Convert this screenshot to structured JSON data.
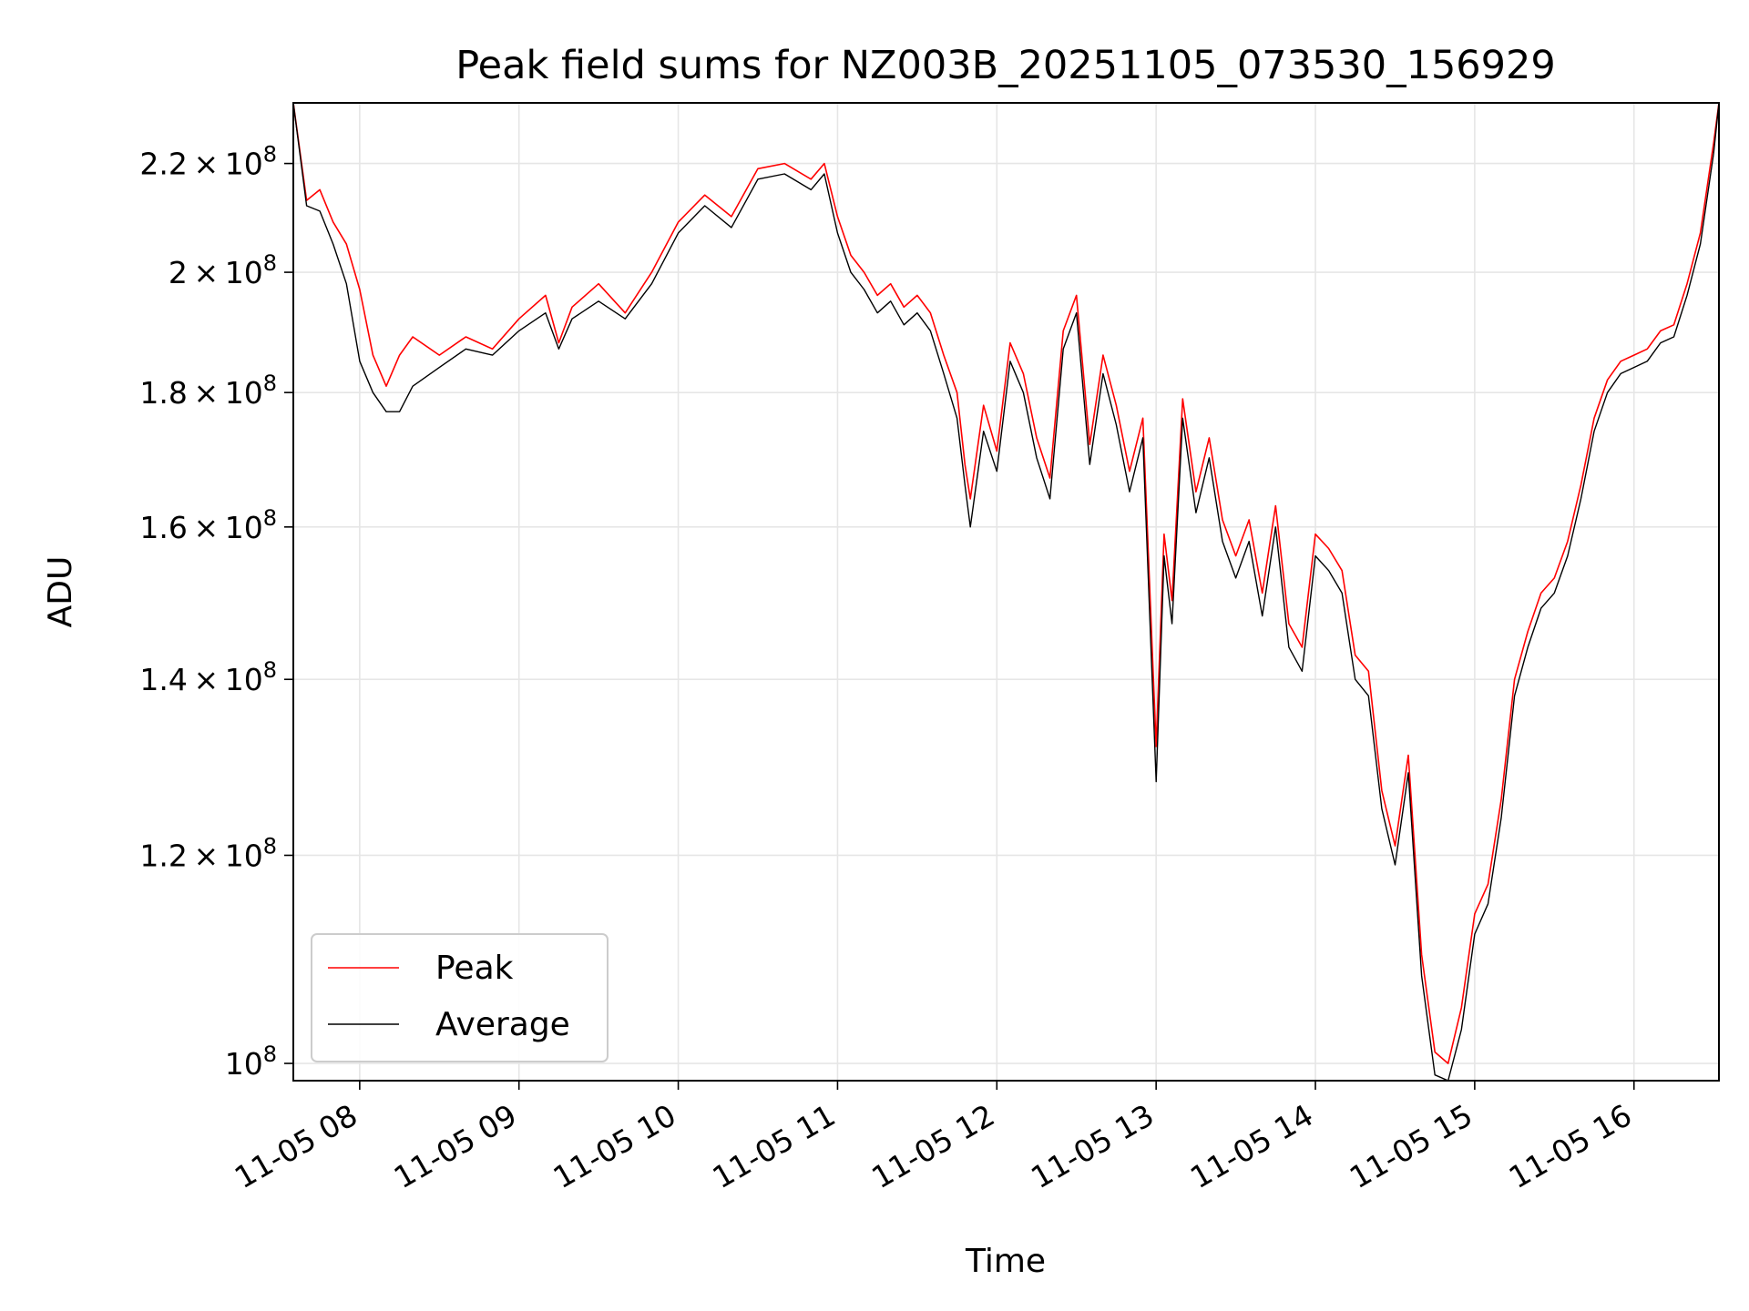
{
  "chart_data": {
    "type": "line",
    "title": "Peak field sums for NZ003B_20251105_073530_156929",
    "xlabel": "Time",
    "ylabel": "ADU",
    "yscale": "log",
    "ylim": [
      98500000,
      232000000
    ],
    "xlim": [
      "11-05 07:35",
      "11-05 16:32"
    ],
    "x_ticks": [
      "11-05 08",
      "11-05 09",
      "11-05 10",
      "11-05 11",
      "11-05 12",
      "11-05 13",
      "11-05 14",
      "11-05 15",
      "11-05 16"
    ],
    "y_ticks": [
      {
        "value": 100000000,
        "mant": "",
        "exp": "8"
      },
      {
        "value": 120000000,
        "mant": "1.2",
        "exp": "8"
      },
      {
        "value": 140000000,
        "mant": "1.4",
        "exp": "8"
      },
      {
        "value": 160000000,
        "mant": "1.6",
        "exp": "8"
      },
      {
        "value": 180000000,
        "mant": "1.8",
        "exp": "8"
      },
      {
        "value": 200000000,
        "mant": "2",
        "exp": "8"
      },
      {
        "value": 220000000,
        "mant": "2.2",
        "exp": "8"
      }
    ],
    "grid": true,
    "legend_position": "lower-left",
    "series": [
      {
        "name": "Peak",
        "color": "#ff0000",
        "x": [
          "07:35",
          "07:40",
          "07:45",
          "07:50",
          "07:55",
          "08:00",
          "08:05",
          "08:10",
          "08:15",
          "08:20",
          "08:30",
          "08:40",
          "08:50",
          "09:00",
          "09:10",
          "09:15",
          "09:20",
          "09:30",
          "09:40",
          "09:50",
          "10:00",
          "10:10",
          "10:20",
          "10:30",
          "10:40",
          "10:50",
          "10:55",
          "11:00",
          "11:05",
          "11:10",
          "11:15",
          "11:20",
          "11:25",
          "11:30",
          "11:35",
          "11:40",
          "11:45",
          "11:48",
          "11:50",
          "11:55",
          "12:00",
          "12:05",
          "12:10",
          "12:15",
          "12:20",
          "12:25",
          "12:30",
          "12:35",
          "12:40",
          "12:45",
          "12:50",
          "12:55",
          "13:00",
          "13:03",
          "13:06",
          "13:10",
          "13:15",
          "13:20",
          "13:25",
          "13:30",
          "13:35",
          "13:40",
          "13:45",
          "13:50",
          "13:55",
          "14:00",
          "14:05",
          "14:10",
          "14:15",
          "14:20",
          "14:25",
          "14:30",
          "14:35",
          "14:40",
          "14:45",
          "14:50",
          "14:55",
          "15:00",
          "15:05",
          "15:10",
          "15:15",
          "15:20",
          "15:25",
          "15:30",
          "15:35",
          "15:40",
          "15:45",
          "15:50",
          "15:55",
          "16:00",
          "16:05",
          "16:10",
          "16:15",
          "16:20",
          "16:25",
          "16:30",
          "16:32"
        ],
        "y": [
          232000000,
          213000000,
          215000000,
          209000000,
          205000000,
          197000000,
          186000000,
          181000000,
          186000000,
          189000000,
          186000000,
          189000000,
          187000000,
          192000000,
          196000000,
          188000000,
          194000000,
          198000000,
          193000000,
          200000000,
          209000000,
          214000000,
          210000000,
          219000000,
          220000000,
          217000000,
          220000000,
          210000000,
          203000000,
          200000000,
          196000000,
          198000000,
          194000000,
          196000000,
          193000000,
          186000000,
          180000000,
          169000000,
          164000000,
          178000000,
          171000000,
          188000000,
          183000000,
          173000000,
          167000000,
          190000000,
          196000000,
          172000000,
          186000000,
          178000000,
          168000000,
          176000000,
          132000000,
          159000000,
          150000000,
          179000000,
          165000000,
          173000000,
          161000000,
          156000000,
          161000000,
          151000000,
          163000000,
          147000000,
          144000000,
          159000000,
          157000000,
          154000000,
          143000000,
          141000000,
          127000000,
          121000000,
          131000000,
          110000000,
          101000000,
          100000000,
          105000000,
          114000000,
          117000000,
          126000000,
          140000000,
          146000000,
          151000000,
          153000000,
          158000000,
          166000000,
          176000000,
          182000000,
          185000000,
          186000000,
          187000000,
          190000000,
          191000000,
          198000000,
          207000000,
          224000000,
          232000000
        ]
      },
      {
        "name": "Average",
        "color": "#000000",
        "x": [
          "07:35",
          "07:40",
          "07:45",
          "07:50",
          "07:55",
          "08:00",
          "08:05",
          "08:10",
          "08:15",
          "08:20",
          "08:30",
          "08:40",
          "08:50",
          "09:00",
          "09:10",
          "09:15",
          "09:20",
          "09:30",
          "09:40",
          "09:50",
          "10:00",
          "10:10",
          "10:20",
          "10:30",
          "10:40",
          "10:50",
          "10:55",
          "11:00",
          "11:05",
          "11:10",
          "11:15",
          "11:20",
          "11:25",
          "11:30",
          "11:35",
          "11:40",
          "11:45",
          "11:48",
          "11:50",
          "11:55",
          "12:00",
          "12:05",
          "12:10",
          "12:15",
          "12:20",
          "12:25",
          "12:30",
          "12:35",
          "12:40",
          "12:45",
          "12:50",
          "12:55",
          "13:00",
          "13:03",
          "13:06",
          "13:10",
          "13:15",
          "13:20",
          "13:25",
          "13:30",
          "13:35",
          "13:40",
          "13:45",
          "13:50",
          "13:55",
          "14:00",
          "14:05",
          "14:10",
          "14:15",
          "14:20",
          "14:25",
          "14:30",
          "14:35",
          "14:40",
          "14:45",
          "14:50",
          "14:55",
          "15:00",
          "15:05",
          "15:10",
          "15:15",
          "15:20",
          "15:25",
          "15:30",
          "15:35",
          "15:40",
          "15:45",
          "15:50",
          "15:55",
          "16:00",
          "16:05",
          "16:10",
          "16:15",
          "16:20",
          "16:25",
          "16:30",
          "16:32"
        ],
        "y": [
          232000000,
          212000000,
          211000000,
          205000000,
          198000000,
          185000000,
          180000000,
          177000000,
          177000000,
          181000000,
          184000000,
          187000000,
          186000000,
          190000000,
          193000000,
          187000000,
          192000000,
          195000000,
          192000000,
          198000000,
          207000000,
          212000000,
          208000000,
          217000000,
          218000000,
          215000000,
          218000000,
          207000000,
          200000000,
          197000000,
          193000000,
          195000000,
          191000000,
          193000000,
          190000000,
          183000000,
          176000000,
          166000000,
          160000000,
          174000000,
          168000000,
          185000000,
          180000000,
          170000000,
          164000000,
          187000000,
          193000000,
          169000000,
          183000000,
          175000000,
          165000000,
          173000000,
          128000000,
          156000000,
          147000000,
          176000000,
          162000000,
          170000000,
          158000000,
          153000000,
          158000000,
          148000000,
          160000000,
          144000000,
          141000000,
          156000000,
          154000000,
          151000000,
          140000000,
          138000000,
          125000000,
          119000000,
          129000000,
          108000000,
          99000000,
          98500000,
          103000000,
          112000000,
          115000000,
          124000000,
          138000000,
          144000000,
          149000000,
          151000000,
          156000000,
          164000000,
          174000000,
          180000000,
          183000000,
          184000000,
          185000000,
          188000000,
          189000000,
          196000000,
          205000000,
          222000000,
          232000000
        ]
      }
    ]
  }
}
